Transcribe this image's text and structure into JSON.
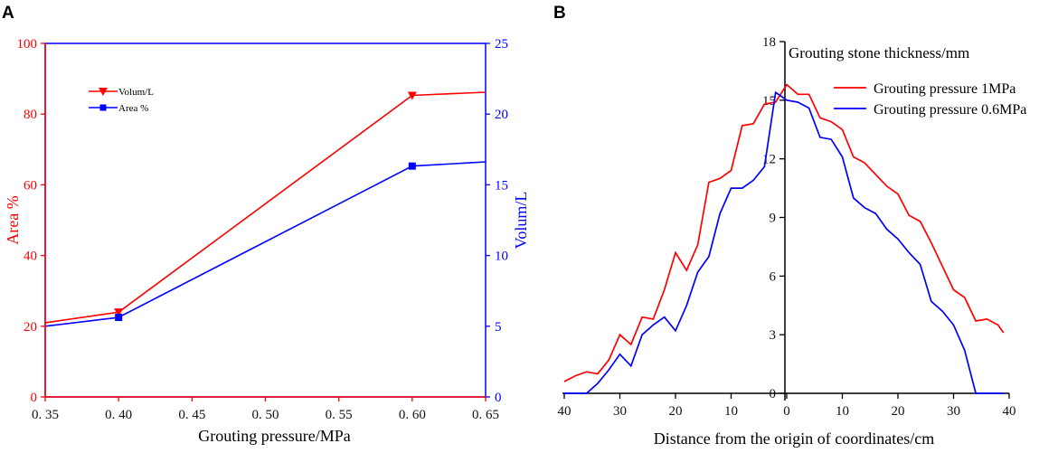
{
  "colors": {
    "red": "#ff0000",
    "blue": "#0000ff",
    "black": "#000000",
    "ink": "#111111"
  },
  "chart_data": [
    {
      "type": "line",
      "panel": "A",
      "xlabel": "Grouting pressure/MPa",
      "ylabel_left": "Area %",
      "ylabel_right": "Volum/L",
      "xlim": [
        0.35,
        0.65
      ],
      "ylim_left": [
        0,
        100
      ],
      "ylim_right": [
        0,
        25
      ],
      "x_ticks": [
        0.35,
        0.4,
        0.45,
        0.5,
        0.55,
        0.6,
        0.65
      ],
      "x_tick_labels": [
        "0. 35",
        "0. 40",
        "0. 45",
        "0. 50",
        "0. 55",
        "0. 60",
        "0. 65"
      ],
      "y_left_ticks": [
        0,
        20,
        40,
        60,
        80,
        100
      ],
      "y_left_tick_labels": [
        "0",
        "20",
        "40",
        "60",
        "80",
        "100"
      ],
      "y_right_ticks": [
        0,
        5,
        10,
        15,
        20,
        25
      ],
      "y_right_tick_labels": [
        "0",
        "5",
        "10",
        "15",
        "20",
        "25"
      ],
      "legend_position": "upper-left",
      "series": [
        {
          "name": "Volum/L",
          "axis": "left",
          "color": "#ff0000",
          "marker": "triangle-down",
          "x": [
            0.35,
            0.4,
            0.6,
            0.65
          ],
          "y": [
            21,
            24,
            85.3,
            86.2
          ]
        },
        {
          "name": "Area %",
          "axis": "left",
          "color": "#0000ff",
          "marker": "square",
          "x": [
            0.35,
            0.4,
            0.6,
            0.65
          ],
          "y": [
            20,
            22.5,
            65.3,
            66.5
          ]
        }
      ]
    },
    {
      "type": "line",
      "panel": "B",
      "title": "Grouting stone thickness/mm",
      "xlabel": "Distance from the origin of coordinates/cm",
      "xlim": [
        -40,
        40
      ],
      "ylim": [
        0,
        18
      ],
      "x_ticks": [
        -40,
        -30,
        -20,
        -10,
        0,
        10,
        20,
        30,
        40
      ],
      "x_tick_labels": [
        "40",
        "30",
        "20",
        "10",
        "0",
        "10",
        "20",
        "30",
        "40"
      ],
      "y_ticks": [
        0,
        3,
        6,
        9,
        12,
        15,
        18
      ],
      "y_tick_labels": [
        "0",
        "3",
        "6",
        "9",
        "12",
        "15",
        "18"
      ],
      "legend_position": "upper-right",
      "series": [
        {
          "name": "Grouting pressure 1MPa",
          "color": "#ff0000",
          "x": [
            -40,
            -38,
            -36,
            -34,
            -32,
            -30,
            -28,
            -26,
            -24,
            -22,
            -20,
            -18,
            -16,
            -14,
            -12,
            -10,
            -8,
            -6,
            -4,
            -2,
            0,
            2,
            4,
            6,
            8,
            10,
            12,
            14,
            16,
            18,
            20,
            22,
            24,
            26,
            28,
            30,
            32,
            34,
            36,
            38,
            39
          ],
          "y": [
            0.6,
            0.9,
            1.1,
            1.0,
            1.7,
            3.0,
            2.5,
            3.9,
            3.8,
            5.3,
            7.2,
            6.3,
            7.6,
            10.8,
            11.0,
            11.4,
            13.7,
            13.8,
            14.8,
            14.9,
            15.8,
            15.3,
            15.3,
            14.1,
            13.9,
            13.5,
            12.1,
            11.8,
            11.2,
            10.6,
            10.2,
            9.1,
            8.8,
            7.7,
            6.5,
            5.3,
            4.9,
            3.7,
            3.8,
            3.5,
            3.1
          ]
        },
        {
          "name": "Grouting pressure 0.6MPa",
          "color": "#0000ff",
          "x": [
            -40,
            -38,
            -36,
            -34,
            -32,
            -30,
            -28,
            -26,
            -24,
            -22,
            -20,
            -18,
            -16,
            -14,
            -12,
            -10,
            -8,
            -6,
            -4,
            -2,
            -1,
            0,
            2,
            4,
            6,
            8,
            10,
            12,
            14,
            16,
            18,
            20,
            22,
            24,
            26,
            28,
            30,
            32,
            34,
            36,
            38,
            39
          ],
          "y": [
            0,
            0,
            0,
            0.5,
            1.2,
            2.0,
            1.4,
            3.0,
            3.5,
            3.9,
            3.2,
            4.5,
            6.2,
            7.0,
            9.2,
            10.5,
            10.5,
            10.9,
            11.6,
            15.4,
            15.2,
            15.0,
            14.9,
            14.6,
            13.1,
            13.0,
            12.1,
            10.0,
            9.5,
            9.2,
            8.4,
            7.9,
            7.2,
            6.6,
            4.7,
            4.2,
            3.5,
            2.2,
            0,
            0,
            0,
            0
          ]
        }
      ]
    }
  ]
}
